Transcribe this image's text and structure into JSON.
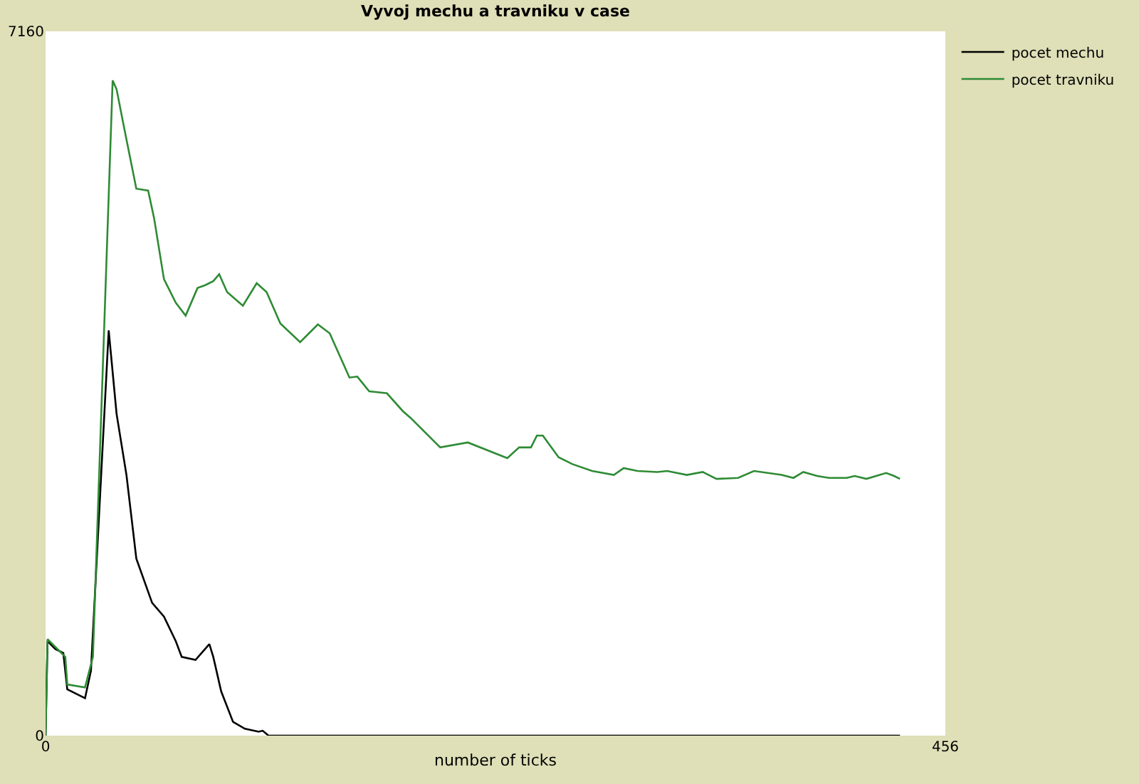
{
  "chart_data": {
    "type": "line",
    "title": "Vyvoj mechu a travniku v case",
    "xlabel": "number of ticks",
    "xlim": [
      0,
      456
    ],
    "xticks": [
      0,
      456
    ],
    "ylim": [
      0,
      7160
    ],
    "yticks": [
      0,
      7160
    ],
    "legend": "top right",
    "marker": "none",
    "line_style": "solid",
    "series": [
      {
        "name": "pocet mechu",
        "color": "#000000",
        "x": [
          0,
          1,
          5,
          9,
          11,
          20,
          23,
          32,
          36,
          41,
          46,
          54,
          60,
          66,
          69,
          76,
          83,
          85,
          89,
          95,
          101,
          108,
          110,
          113,
          433
        ],
        "values": [
          0,
          960,
          880,
          840,
          470,
          380,
          660,
          4120,
          3270,
          2650,
          1800,
          1350,
          1210,
          960,
          800,
          770,
          930,
          800,
          450,
          140,
          70,
          40,
          50,
          0,
          0
        ]
      },
      {
        "name": "pocet travniku",
        "color": "#2e8b34",
        "x": [
          0,
          1,
          10,
          11,
          20,
          24,
          34,
          36,
          40,
          46,
          52,
          55,
          60,
          66,
          71,
          77,
          81,
          85,
          88,
          92,
          100,
          107,
          112,
          119,
          129,
          138,
          144,
          154,
          158,
          164,
          173,
          181,
          185,
          200,
          214,
          234,
          240,
          246,
          249,
          252,
          260,
          267,
          277,
          288,
          293,
          300,
          310,
          315,
          325,
          333,
          340,
          351,
          359,
          373,
          379,
          384,
          391,
          397,
          406,
          410,
          416,
          426,
          430,
          433
        ],
        "values": [
          0,
          980,
          800,
          520,
          490,
          800,
          6660,
          6570,
          6160,
          5560,
          5540,
          5260,
          4640,
          4400,
          4270,
          4550,
          4580,
          4620,
          4690,
          4510,
          4370,
          4600,
          4510,
          4190,
          4000,
          4180,
          4090,
          3640,
          3650,
          3500,
          3480,
          3300,
          3230,
          2930,
          2980,
          2820,
          2930,
          2930,
          3050,
          3050,
          2830,
          2760,
          2690,
          2650,
          2720,
          2690,
          2680,
          2690,
          2650,
          2680,
          2610,
          2620,
          2690,
          2650,
          2620,
          2680,
          2640,
          2620,
          2620,
          2640,
          2610,
          2670,
          2640,
          2610
        ]
      }
    ]
  }
}
